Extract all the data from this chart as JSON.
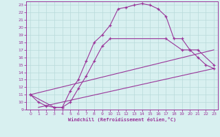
{
  "line1_x": [
    0,
    1,
    2,
    3,
    4,
    5,
    6,
    7,
    8,
    9,
    10,
    11,
    12,
    13,
    14,
    15,
    16,
    17,
    18,
    19,
    20,
    21,
    22,
    23
  ],
  "line1_y": [
    11,
    10,
    9.5,
    9.3,
    9.3,
    11.5,
    13.0,
    15.5,
    18.0,
    19.0,
    20.3,
    22.5,
    22.7,
    23.0,
    23.2,
    23.0,
    22.5,
    21.5,
    18.5,
    18.5,
    17.0,
    16.0,
    15.0,
    14.5
  ],
  "line2_x": [
    0,
    3,
    4,
    5,
    6,
    7,
    8,
    9,
    10,
    17,
    19,
    20,
    21,
    23
  ],
  "line2_y": [
    11,
    9.3,
    9.3,
    10.0,
    11.8,
    13.5,
    15.5,
    17.5,
    18.5,
    18.5,
    17.0,
    17.0,
    17.0,
    15.0
  ],
  "line3_x": [
    0,
    23
  ],
  "line3_y": [
    11,
    17.0
  ],
  "line4_x": [
    1,
    23
  ],
  "line4_y": [
    9.3,
    14.5
  ],
  "color": "#993399",
  "bg_color": "#d8f0f0",
  "grid_color": "#b8dada",
  "xlabel": "Windchill (Refroidissement éolien,°C)",
  "xlim": [
    -0.5,
    23.5
  ],
  "ylim": [
    9,
    23.5
  ],
  "xticks": [
    0,
    1,
    2,
    3,
    4,
    5,
    6,
    7,
    8,
    9,
    10,
    11,
    12,
    13,
    14,
    15,
    16,
    17,
    18,
    19,
    20,
    21,
    22,
    23
  ],
  "yticks": [
    9,
    10,
    11,
    12,
    13,
    14,
    15,
    16,
    17,
    18,
    19,
    20,
    21,
    22,
    23
  ]
}
